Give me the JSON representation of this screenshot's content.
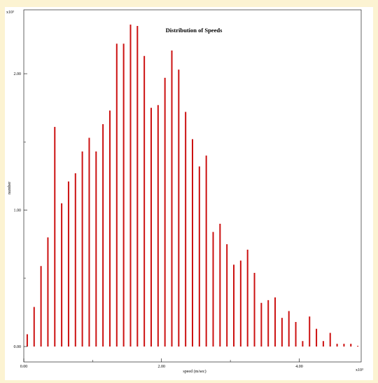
{
  "chart_data": {
    "type": "bar",
    "title": "Distribution of Speeds",
    "xlabel": "speed (m/sec)",
    "ylabel": "number",
    "x_multiplier": "x10³",
    "y_multiplier": "x10³",
    "xlim": [
      0,
      4.9
    ],
    "ylim": [
      0,
      2.35
    ],
    "x_ticks": [
      "0.00",
      "2.00",
      "4.00"
    ],
    "y_ticks": [
      "0.00",
      "1.00",
      "2.00"
    ],
    "grid": false,
    "bar_color": "#cc1111",
    "x": [
      0.05,
      0.15,
      0.25,
      0.35,
      0.45,
      0.55,
      0.65,
      0.75,
      0.85,
      0.95,
      1.05,
      1.15,
      1.25,
      1.35,
      1.45,
      1.55,
      1.65,
      1.75,
      1.85,
      1.95,
      2.05,
      2.15,
      2.25,
      2.35,
      2.45,
      2.55,
      2.65,
      2.75,
      2.85,
      2.95,
      3.05,
      3.15,
      3.25,
      3.35,
      3.45,
      3.55,
      3.65,
      3.75,
      3.85,
      3.95,
      4.05,
      4.15,
      4.25,
      4.35,
      4.45,
      4.55,
      4.65,
      4.75,
      4.85
    ],
    "values": [
      0.09,
      0.29,
      0.59,
      0.8,
      1.61,
      1.05,
      1.21,
      1.27,
      1.43,
      1.53,
      1.43,
      1.63,
      1.73,
      2.22,
      2.22,
      2.36,
      2.35,
      2.13,
      1.75,
      1.77,
      1.97,
      2.17,
      2.03,
      1.72,
      1.52,
      1.32,
      1.4,
      0.84,
      0.9,
      0.75,
      0.6,
      0.63,
      0.71,
      0.54,
      0.32,
      0.34,
      0.36,
      0.21,
      0.26,
      0.18,
      0.04,
      0.22,
      0.13,
      0.04,
      0.1,
      0.02,
      0.02,
      0.02,
      0.005
    ]
  }
}
